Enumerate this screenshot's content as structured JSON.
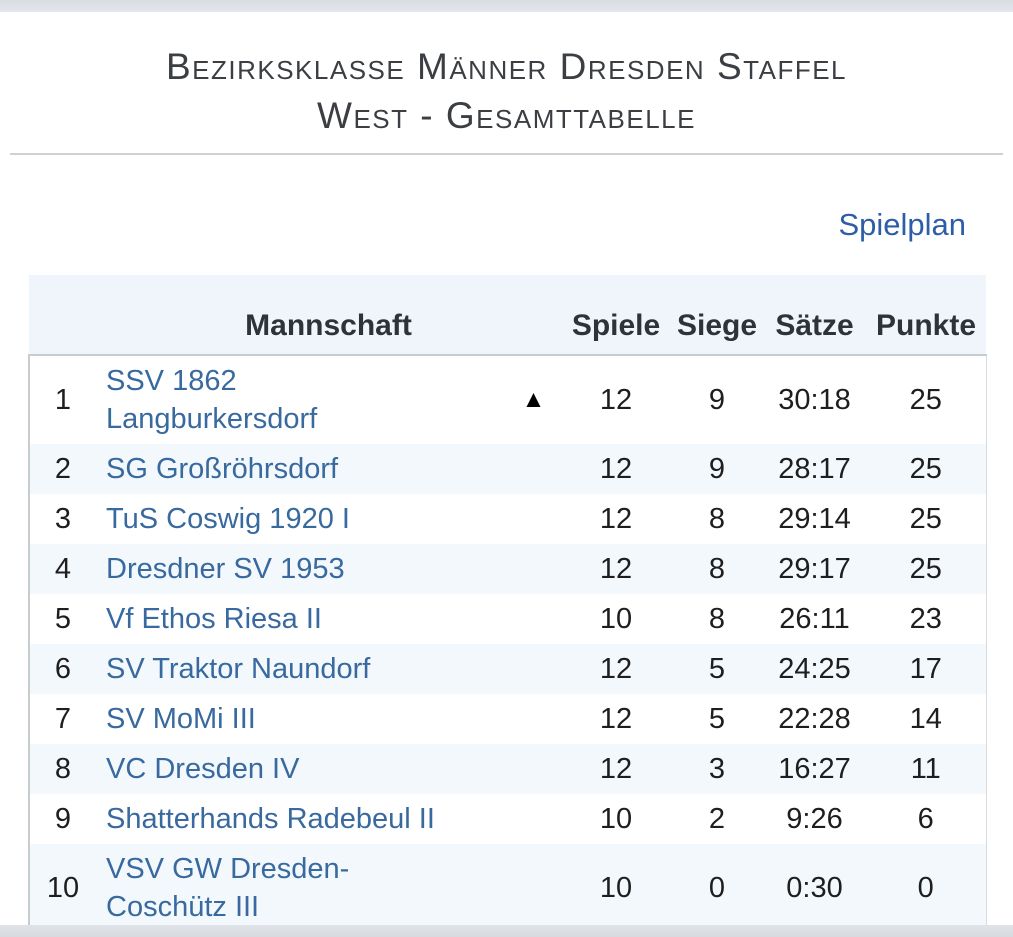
{
  "page": {
    "title": "Bezirksklasse Männer Dresden Staffel\nWest - Gesamttabelle",
    "schedule_link_label": "Spielplan"
  },
  "table": {
    "headers": {
      "team": "Mannschaft",
      "games": "Spiele",
      "wins": "Siege",
      "sets": "Sätze",
      "points": "Punkte"
    },
    "rows": [
      {
        "pos": "1",
        "team": "SSV 1862\nLangburkersdorf",
        "trend_icon": "▲",
        "games": "12",
        "wins": "9",
        "sets": "30:18",
        "points": "25"
      },
      {
        "pos": "2",
        "team": "SG Großröhrsdorf",
        "trend_icon": "",
        "games": "12",
        "wins": "9",
        "sets": "28:17",
        "points": "25"
      },
      {
        "pos": "3",
        "team": "TuS Coswig 1920 I",
        "trend_icon": "",
        "games": "12",
        "wins": "8",
        "sets": "29:14",
        "points": "25"
      },
      {
        "pos": "4",
        "team": "Dresdner SV 1953",
        "trend_icon": "",
        "games": "12",
        "wins": "8",
        "sets": "29:17",
        "points": "25"
      },
      {
        "pos": "5",
        "team": "Vf Ethos Riesa II",
        "trend_icon": "",
        "games": "10",
        "wins": "8",
        "sets": "26:11",
        "points": "23"
      },
      {
        "pos": "6",
        "team": "SV Traktor Naundorf",
        "trend_icon": "",
        "games": "12",
        "wins": "5",
        "sets": "24:25",
        "points": "17"
      },
      {
        "pos": "7",
        "team": "SV MoMi III",
        "trend_icon": "",
        "games": "12",
        "wins": "5",
        "sets": "22:28",
        "points": "14"
      },
      {
        "pos": "8",
        "team": "VC Dresden IV",
        "trend_icon": "",
        "games": "12",
        "wins": "3",
        "sets": "16:27",
        "points": "11"
      },
      {
        "pos": "9",
        "team": "Shatterhands Radebeul II",
        "trend_icon": "",
        "games": "10",
        "wins": "2",
        "sets": "9:26",
        "points": "6"
      },
      {
        "pos": "10",
        "team": "VSV GW Dresden-\nCoschütz III",
        "trend_icon": "",
        "games": "10",
        "wins": "0",
        "sets": "0:30",
        "points": "0"
      }
    ]
  },
  "colors": {
    "link_blue": "#2e5da8",
    "team_link_blue": "#38699f",
    "header_row_bg": "#eff5fa",
    "alt_row_bg": "#f3f8fc",
    "edge_bar_gray": "#dcdfe3"
  }
}
